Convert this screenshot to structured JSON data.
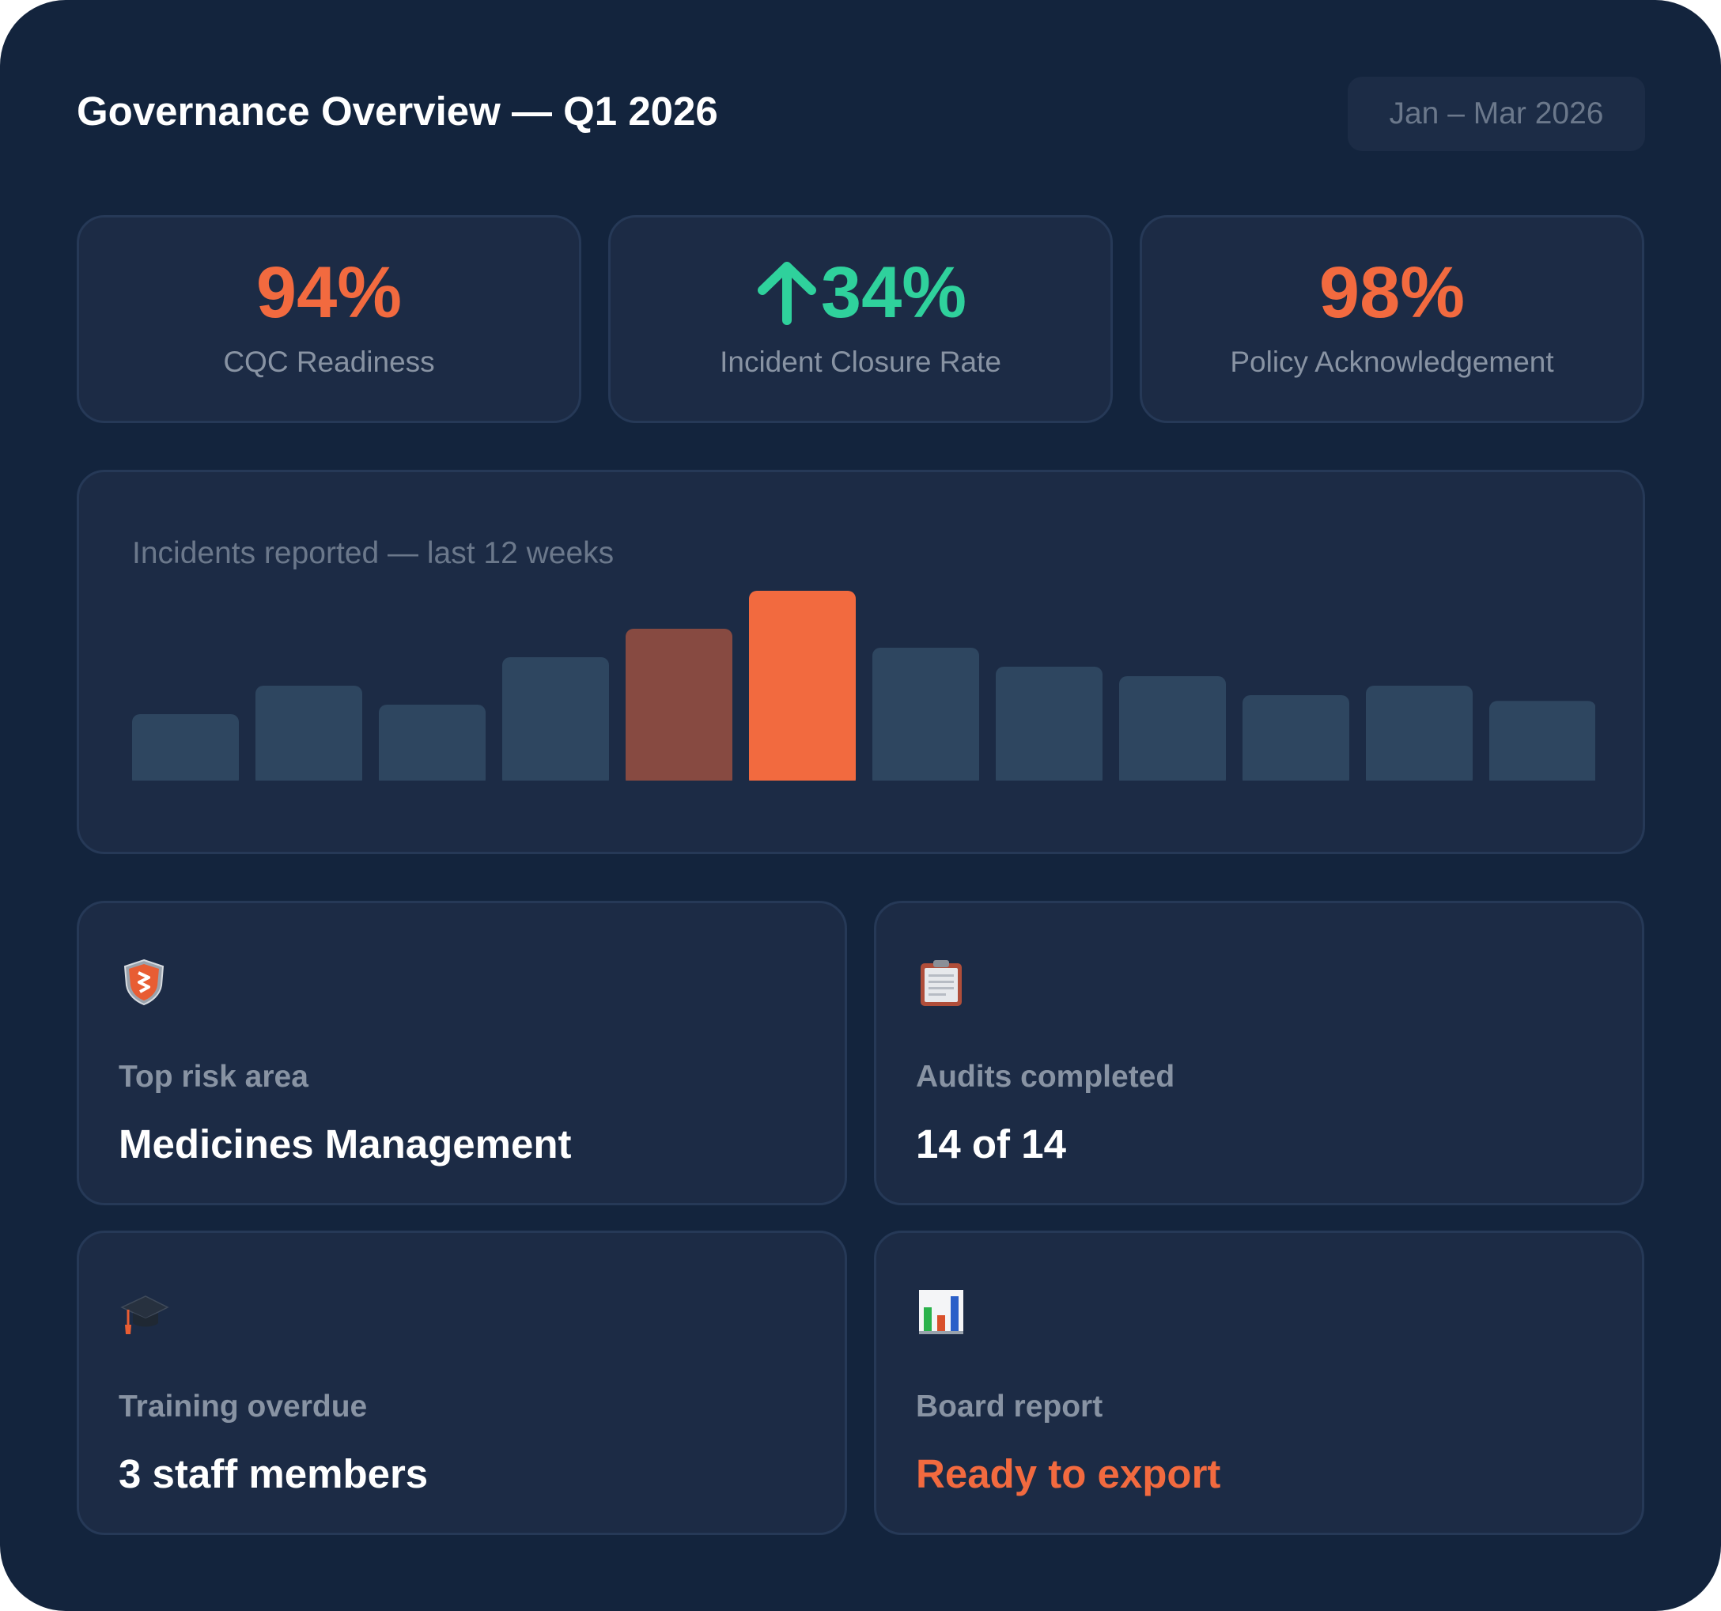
{
  "header": {
    "title": "Governance Overview — Q1 2026",
    "date_range": "Jan – Mar 2026"
  },
  "kpis": [
    {
      "value": "94%",
      "label": "CQC Readiness",
      "color": "#f26a3f",
      "icon": ""
    },
    {
      "value": "34%",
      "label": "Incident Closure Rate",
      "color": "#2fd19c",
      "icon": "arrow-up-icon"
    },
    {
      "value": "98%",
      "label": "Policy Acknowledgement",
      "color": "#f26a3f",
      "icon": ""
    }
  ],
  "chart": {
    "title": "Incidents reported — last 12 weeks"
  },
  "chart_data": {
    "type": "bar",
    "title": "Incidents reported — last 12 weeks",
    "xlabel": "",
    "ylabel": "",
    "values": [
      35,
      50,
      40,
      65,
      80,
      100,
      70,
      60,
      55,
      45,
      50,
      42
    ],
    "ylim": [
      0,
      100
    ],
    "grid": false,
    "colors": {
      "default": "#2e4660",
      "highlight_previous": "#874a41",
      "highlight_peak": "#f26a3f"
    },
    "highlighted_indices": [
      4,
      5
    ]
  },
  "info_cards": [
    {
      "icon": "shield-icon",
      "label": "Top risk area",
      "value": "Medicines Management",
      "accent": false
    },
    {
      "icon": "clipboard-icon",
      "label": "Audits completed",
      "value": "14 of 14",
      "accent": false
    },
    {
      "icon": "graduation-cap-icon",
      "label": "Training overdue",
      "value": "3 staff members",
      "accent": false
    },
    {
      "icon": "bar-chart-icon",
      "label": "Board report",
      "value": "Ready to export",
      "accent": true
    }
  ]
}
